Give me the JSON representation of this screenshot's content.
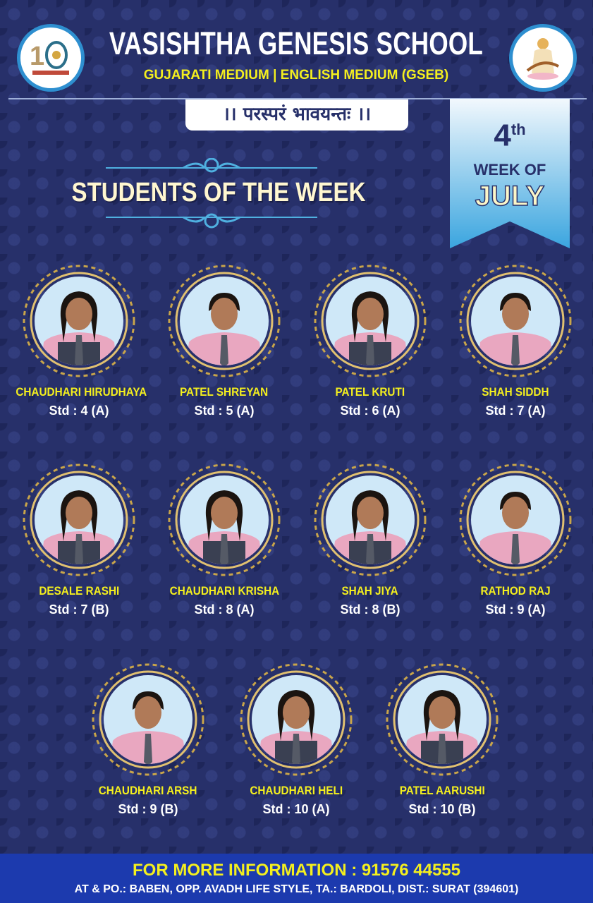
{
  "header": {
    "school_name": "VASISHTHA GENESIS SCHOOL",
    "subtitle": "GUJARATI MEDIUM | ENGLISH MEDIUM (GSEB)",
    "motto": "।। परस्परं भावयन्तः ।।",
    "left_logo": "10-years-anniversary-logo",
    "right_logo": "saraswati-emblem"
  },
  "banner": {
    "title": "STUDENTS OF THE WEEK"
  },
  "ribbon": {
    "week_number": "4",
    "week_suffix": "th",
    "week_of": "WEEK OF",
    "month": "JULY"
  },
  "students": [
    {
      "name": "CHAUDHARI HIRUDHAYA",
      "std": "Std : 4 (A)",
      "gender": "f"
    },
    {
      "name": "PATEL SHREYAN",
      "std": "Std : 5 (A)",
      "gender": "m"
    },
    {
      "name": "PATEL KRUTI",
      "std": "Std : 6 (A)",
      "gender": "f"
    },
    {
      "name": "SHAH SIDDH",
      "std": "Std : 7 (A)",
      "gender": "m"
    },
    {
      "name": "DESALE RASHI",
      "std": "Std : 7 (B)",
      "gender": "f"
    },
    {
      "name": "CHAUDHARI KRISHA",
      "std": "Std : 8 (A)",
      "gender": "f"
    },
    {
      "name": "SHAH JIYA",
      "std": "Std : 8 (B)",
      "gender": "f"
    },
    {
      "name": "RATHOD RAJ",
      "std": "Std : 9 (A)",
      "gender": "m"
    },
    {
      "name": "CHAUDHARI ARSH",
      "std": "Std : 9 (B)",
      "gender": "m"
    },
    {
      "name": "CHAUDHARI HELI",
      "std": "Std : 10 (A)",
      "gender": "f"
    },
    {
      "name": "PATEL AARUSHI",
      "std": "Std : 10 (B)",
      "gender": "f"
    }
  ],
  "footer": {
    "info": "FOR MORE INFORMATION : 91576 44555",
    "address": "AT & PO.: BABEN, OPP. AVADH LIFE STYLE, TA.: BARDOLI, DIST.: SURAT (394601)"
  },
  "colors": {
    "background": "#27306a",
    "accent_yellow": "#f4ef1e",
    "footer": "#1c3aae",
    "ribbon": "#3aa5df"
  }
}
